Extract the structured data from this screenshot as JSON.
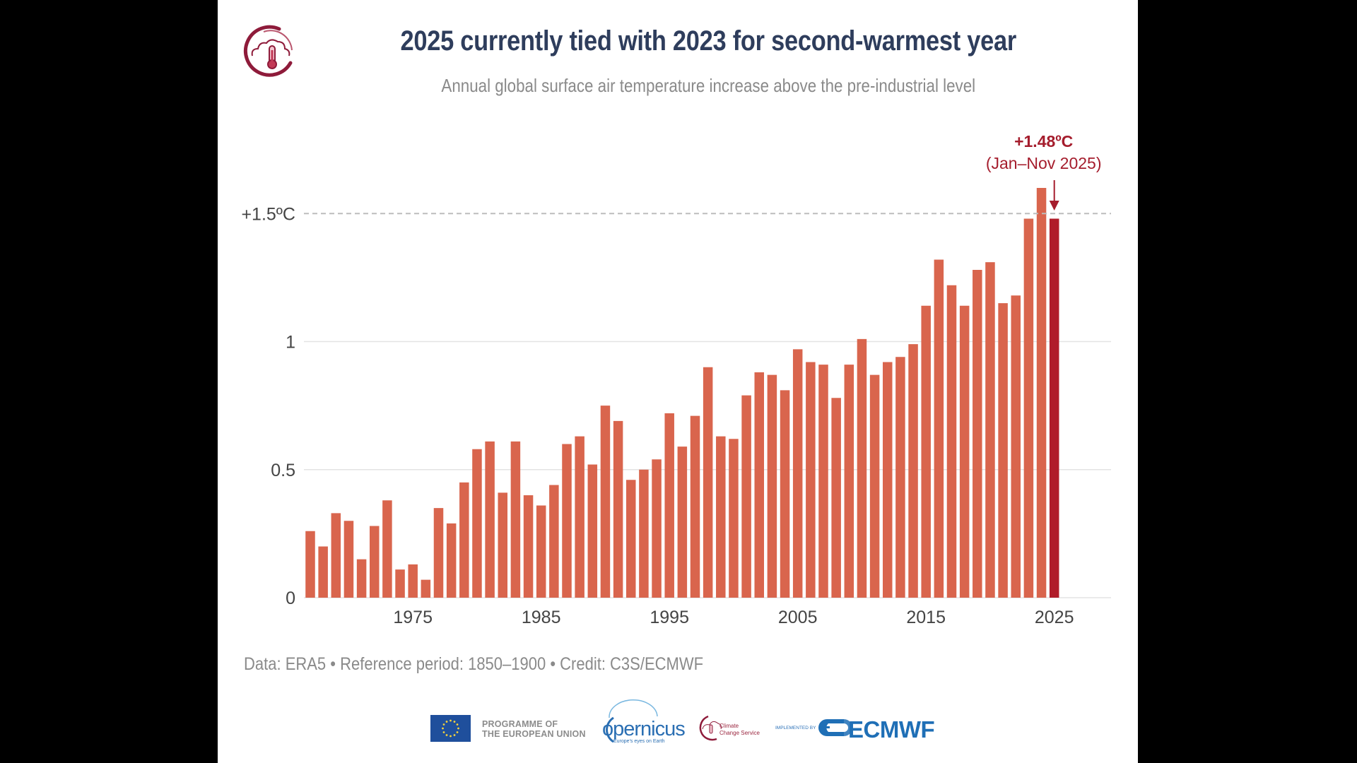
{
  "header": {
    "logo_icon": "climate-change-service-logo-icon",
    "title": "2025 currently tied with 2023 for second-warmest year",
    "subtitle": "Annual global surface air temperature increase above the pre-industrial level"
  },
  "footer": {
    "source": "Data: ERA5 • Reference period: 1850–1900 • Credit: C3S/ECMWF",
    "logos": {
      "eu_line1": "PROGRAMME OF",
      "eu_line2": "THE EUROPEAN UNION",
      "copernicus": "opernicus",
      "copernicus_tagline": "Europe's eyes on Earth",
      "c3s_line1": "Climate",
      "c3s_line2": "Change Service",
      "implemented_by": "IMPLEMENTED BY",
      "ecmwf": "ECMWF"
    }
  },
  "colors": {
    "bar": "#d9654d",
    "highlight_bar": "#b01c2a",
    "annotation": "#a51d2d",
    "title": "#2e3d5c",
    "subtitle": "#8a8a8a",
    "threshold_line": "#bdbdbd"
  },
  "chart_data": {
    "type": "bar",
    "title": "2025 currently tied with 2023 for second-warmest year",
    "subtitle": "Annual global surface air temperature increase above the pre-industrial level",
    "xlabel": "",
    "ylabel": "",
    "unit": "ºC",
    "ylim": [
      0,
      1.6
    ],
    "grid": true,
    "legend": "none",
    "x_tick_labels": [
      "1975",
      "1985",
      "1995",
      "2005",
      "2015",
      "2025"
    ],
    "y_ticks": [
      {
        "value": 0,
        "label": "0"
      },
      {
        "value": 0.5,
        "label": "0.5"
      },
      {
        "value": 1,
        "label": "1"
      },
      {
        "value": 1.5,
        "label": "+1.5ºC"
      }
    ],
    "threshold": {
      "value": 1.5,
      "style": "dashed",
      "label": "+1.5ºC"
    },
    "categories": [
      1967,
      1968,
      1969,
      1970,
      1971,
      1972,
      1973,
      1974,
      1975,
      1976,
      1977,
      1978,
      1979,
      1980,
      1981,
      1982,
      1983,
      1984,
      1985,
      1986,
      1987,
      1988,
      1989,
      1990,
      1991,
      1992,
      1993,
      1994,
      1995,
      1996,
      1997,
      1998,
      1999,
      2000,
      2001,
      2002,
      2003,
      2004,
      2005,
      2006,
      2007,
      2008,
      2009,
      2010,
      2011,
      2012,
      2013,
      2014,
      2015,
      2016,
      2017,
      2018,
      2019,
      2020,
      2021,
      2022,
      2023,
      2024,
      2025
    ],
    "values": [
      0.26,
      0.2,
      0.33,
      0.3,
      0.15,
      0.28,
      0.38,
      0.11,
      0.13,
      0.07,
      0.35,
      0.29,
      0.45,
      0.58,
      0.61,
      0.41,
      0.61,
      0.4,
      0.36,
      0.44,
      0.6,
      0.63,
      0.52,
      0.75,
      0.69,
      0.46,
      0.5,
      0.54,
      0.72,
      0.59,
      0.71,
      0.9,
      0.63,
      0.62,
      0.79,
      0.88,
      0.87,
      0.81,
      0.97,
      0.92,
      0.91,
      0.78,
      0.91,
      1.01,
      0.87,
      0.92,
      0.94,
      0.99,
      1.14,
      1.32,
      1.22,
      1.14,
      1.28,
      1.31,
      1.15,
      1.18,
      1.48,
      1.6,
      1.48
    ],
    "highlight": {
      "category": 2025,
      "value": 1.48
    },
    "annotation": {
      "value_label": "+1.48ºC",
      "period_label": "(Jan–Nov 2025)",
      "target": 2025
    }
  }
}
